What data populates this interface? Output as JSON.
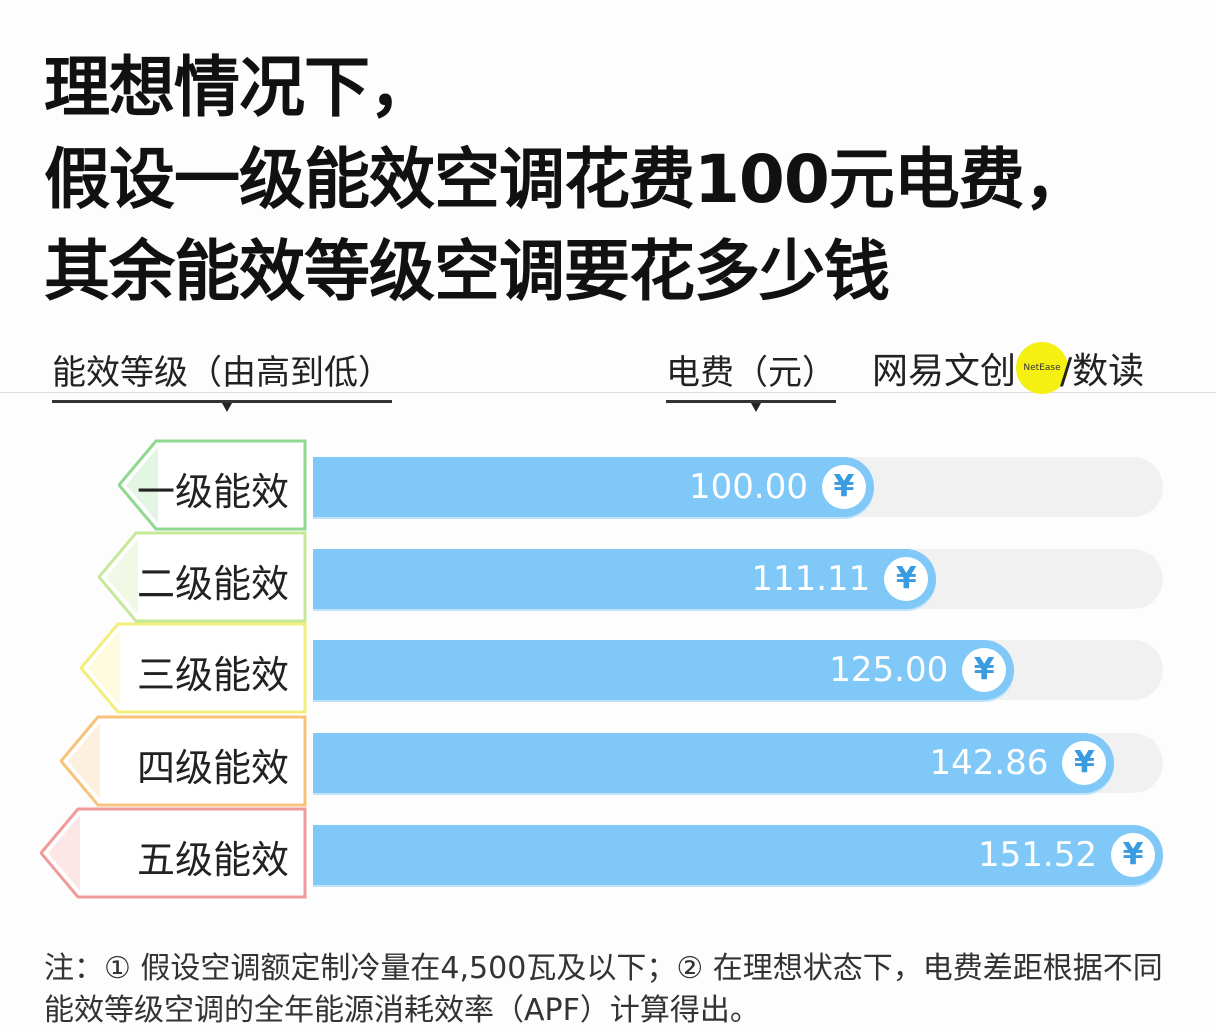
{
  "title_lines": [
    "理想情况下，",
    "假设一级能效空调花费100元电费，",
    "其余能效等级空调要花多少钱"
  ],
  "left_header": "能效等级（由高到低）",
  "right_header": "电费（元）",
  "brand": {
    "left": "网易文创",
    "dot": "NetEase",
    "right": "/数读"
  },
  "chart_data": {
    "type": "bar",
    "orientation": "horizontal",
    "categories": [
      "一级能效",
      "二级能效",
      "三级能效",
      "四级能效",
      "五级能效"
    ],
    "values": [
      100.0,
      111.11,
      125.0,
      142.86,
      151.52
    ],
    "labels": [
      "100.00",
      "111.11",
      "125.00",
      "142.86",
      "151.52"
    ],
    "unit_icon": "yen-icon",
    "ylabel": "能效等级（由高到低）",
    "xlabel": "电费（元）",
    "bar_color": "#7fc8f8",
    "tag_colors": [
      "#8fd88f",
      "#c6e89a",
      "#f3ee7a",
      "#f7c27a",
      "#f29a9a"
    ]
  },
  "note_lines": [
    "注：① 假设空调额定制冷量在4,500瓦及以下；② 在理想状态下，电费差距根据不同",
    "能效等级空调的全年能源消耗效率（APF）计算得出。"
  ]
}
